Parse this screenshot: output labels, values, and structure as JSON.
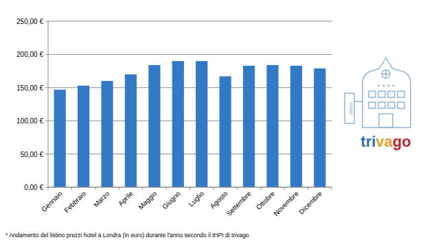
{
  "chart_data": {
    "type": "bar",
    "categories": [
      "Gennaio",
      "Febbraio",
      "Marzo",
      "Aprile",
      "Maggio",
      "Giugno",
      "Luglio",
      "Agosto",
      "Settembre",
      "Ottobre",
      "Novembre",
      "Dicembre"
    ],
    "values": [
      147,
      153,
      160,
      170,
      184,
      190,
      190,
      167,
      183,
      184,
      183,
      179
    ],
    "color": "#3279c6",
    "ylim": [
      0,
      250
    ],
    "yticks": [
      {
        "value": 0,
        "label": "0,00 €"
      },
      {
        "value": 50,
        "label": "50,00 €"
      },
      {
        "value": 100,
        "label": "100,00 €"
      },
      {
        "value": 150,
        "label": "150,00 €"
      },
      {
        "value": 200,
        "label": "200,00 €"
      },
      {
        "value": 250,
        "label": "250,00 €"
      }
    ],
    "grid": true,
    "annotations": [
      "* Andamento del listino prezzi hotel a Londra (in euro) durante l'anno secondo il tHPI di trivago",
      "trivago",
      "Hotel"
    ]
  }
}
